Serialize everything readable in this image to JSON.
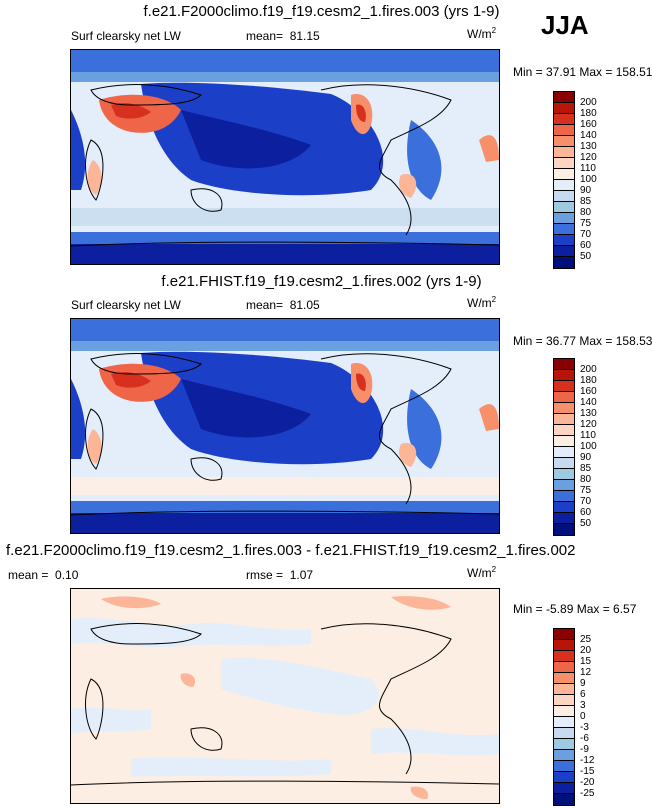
{
  "season": "JJA",
  "panels": [
    {
      "title": "f.e21.F2000climo.f19_f19.cesm2_1.fires.003 (yrs 1-9)",
      "variable": "Surf clearsky net LW",
      "mean_label": "mean=",
      "mean_value": "81.15",
      "units_base": "W/m",
      "units_exp": "2",
      "minmax": "Min = 37.91 Max = 158.51",
      "levels": [
        "200",
        "180",
        "160",
        "140",
        "130",
        "120",
        "110",
        "100",
        "90",
        "85",
        "80",
        "75",
        "70",
        "60",
        "50"
      ],
      "colors": [
        "#8b0000",
        "#b81407",
        "#d7301f",
        "#ef6548",
        "#f7906a",
        "#fcb597",
        "#fdd5c0",
        "#fdeee4",
        "#e4eefa",
        "#c6dbef",
        "#9ecae1",
        "#6aa0e0",
        "#3a6fdc",
        "#1c3fc8",
        "#0c1f9e",
        "#00107a"
      ]
    },
    {
      "title": "f.e21.FHIST.f19_f19.cesm2_1.fires.002 (yrs 1-9)",
      "variable": "Surf clearsky net LW",
      "mean_label": "mean=",
      "mean_value": "81.05",
      "units_base": "W/m",
      "units_exp": "2",
      "minmax": "Min = 36.77 Max = 158.53",
      "levels": [
        "200",
        "180",
        "160",
        "140",
        "130",
        "120",
        "110",
        "100",
        "90",
        "85",
        "80",
        "75",
        "70",
        "60",
        "50"
      ],
      "colors": [
        "#8b0000",
        "#b81407",
        "#d7301f",
        "#ef6548",
        "#f7906a",
        "#fcb597",
        "#fdd5c0",
        "#fdeee4",
        "#e4eefa",
        "#c6dbef",
        "#9ecae1",
        "#6aa0e0",
        "#3a6fdc",
        "#1c3fc8",
        "#0c1f9e",
        "#00107a"
      ]
    },
    {
      "title": "f.e21.F2000climo.f19_f19.cesm2_1.fires.003 - f.e21.FHIST.f19_f19.cesm2_1.fires.002",
      "mean_label": "mean =",
      "mean_value": "0.10",
      "rmse_label": "rmse =",
      "rmse_value": "1.07",
      "units_base": "W/m",
      "units_exp": "2",
      "minmax": "Min = -5.89 Max = 6.57",
      "levels": [
        "25",
        "20",
        "15",
        "12",
        "9",
        "6",
        "3",
        "0",
        "-3",
        "-6",
        "-9",
        "-12",
        "-15",
        "-20",
        "-25"
      ],
      "colors": [
        "#8b0000",
        "#b81407",
        "#d7301f",
        "#ef6548",
        "#f7906a",
        "#fcb597",
        "#fdd5c0",
        "#fdeee4",
        "#e4eefa",
        "#c6dbef",
        "#9ecae1",
        "#6aa0e0",
        "#3a6fdc",
        "#1c3fc8",
        "#0c1f9e",
        "#00107a"
      ]
    }
  ]
}
